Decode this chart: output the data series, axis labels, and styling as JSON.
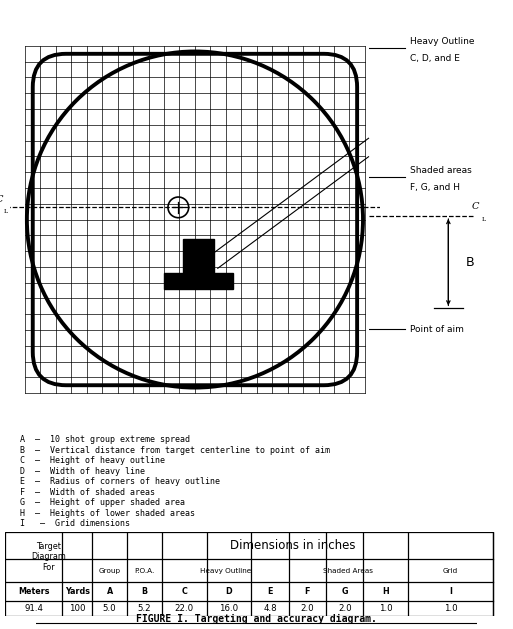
{
  "title": "FIGURE I. Targeting and accuracy diagram.",
  "bg_color": "#ffffff",
  "legend_lines": [
    "A  –  10 shot group extreme spread",
    "B  –  Vertical distance from target centerline to point of aim",
    "C  –  Height of heavy outline",
    "D  –  Width of heavy line",
    "E  –  Radius of corners of heavy outline",
    "F  –  Width of shaded areas",
    "G  –  Height of upper shaded area",
    "H  –  Heights of lower shaded areas",
    "I   –  Grid dimensions"
  ],
  "table_cols": [
    0.0,
    0.115,
    0.175,
    0.245,
    0.315,
    0.405,
    0.495,
    0.57,
    0.645,
    0.72,
    0.81,
    0.98
  ],
  "table_rows": [
    1.0,
    0.68,
    0.4,
    0.18,
    0.0
  ],
  "table_header3": [
    "Meters",
    "Yards",
    "A",
    "B",
    "C",
    "D",
    "E",
    "F",
    "G",
    "H",
    "I"
  ],
  "table_data": [
    "91.4",
    "100",
    "5.0",
    "5.2",
    "22.0",
    "16.0",
    "4.8",
    "2.0",
    "2.0",
    "1.0",
    "1.0"
  ]
}
